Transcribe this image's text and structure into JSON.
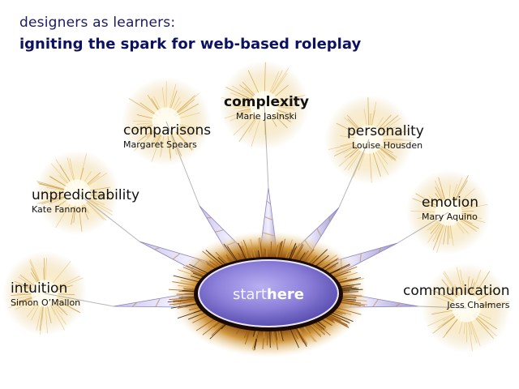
{
  "header": {
    "line1": "designers as learners:",
    "line2": "igniting the spark for web-based roleplay"
  },
  "nodes": [
    {
      "topic": "intuition",
      "person": "Simon O’Mallon"
    },
    {
      "topic": "unpredictability",
      "person": "Kate Fannon"
    },
    {
      "topic": "comparisons",
      "person": "Margaret Spears"
    },
    {
      "topic": "complexity",
      "person": "Marie Jasinski"
    },
    {
      "topic": "personality",
      "person": "Louise Housden"
    },
    {
      "topic": "emotion",
      "person": "Mary Aquino"
    },
    {
      "topic": "communication",
      "person": "Jess Chalmers"
    }
  ],
  "start": {
    "word1": "start",
    "word2": "here"
  },
  "colors": {
    "heading": "#0d1260",
    "spark_core": "#fff6d8",
    "spark_ray": "#d9b36a",
    "hub_fill": "#8b7fd6",
    "hub_rim": "#b86a10"
  }
}
